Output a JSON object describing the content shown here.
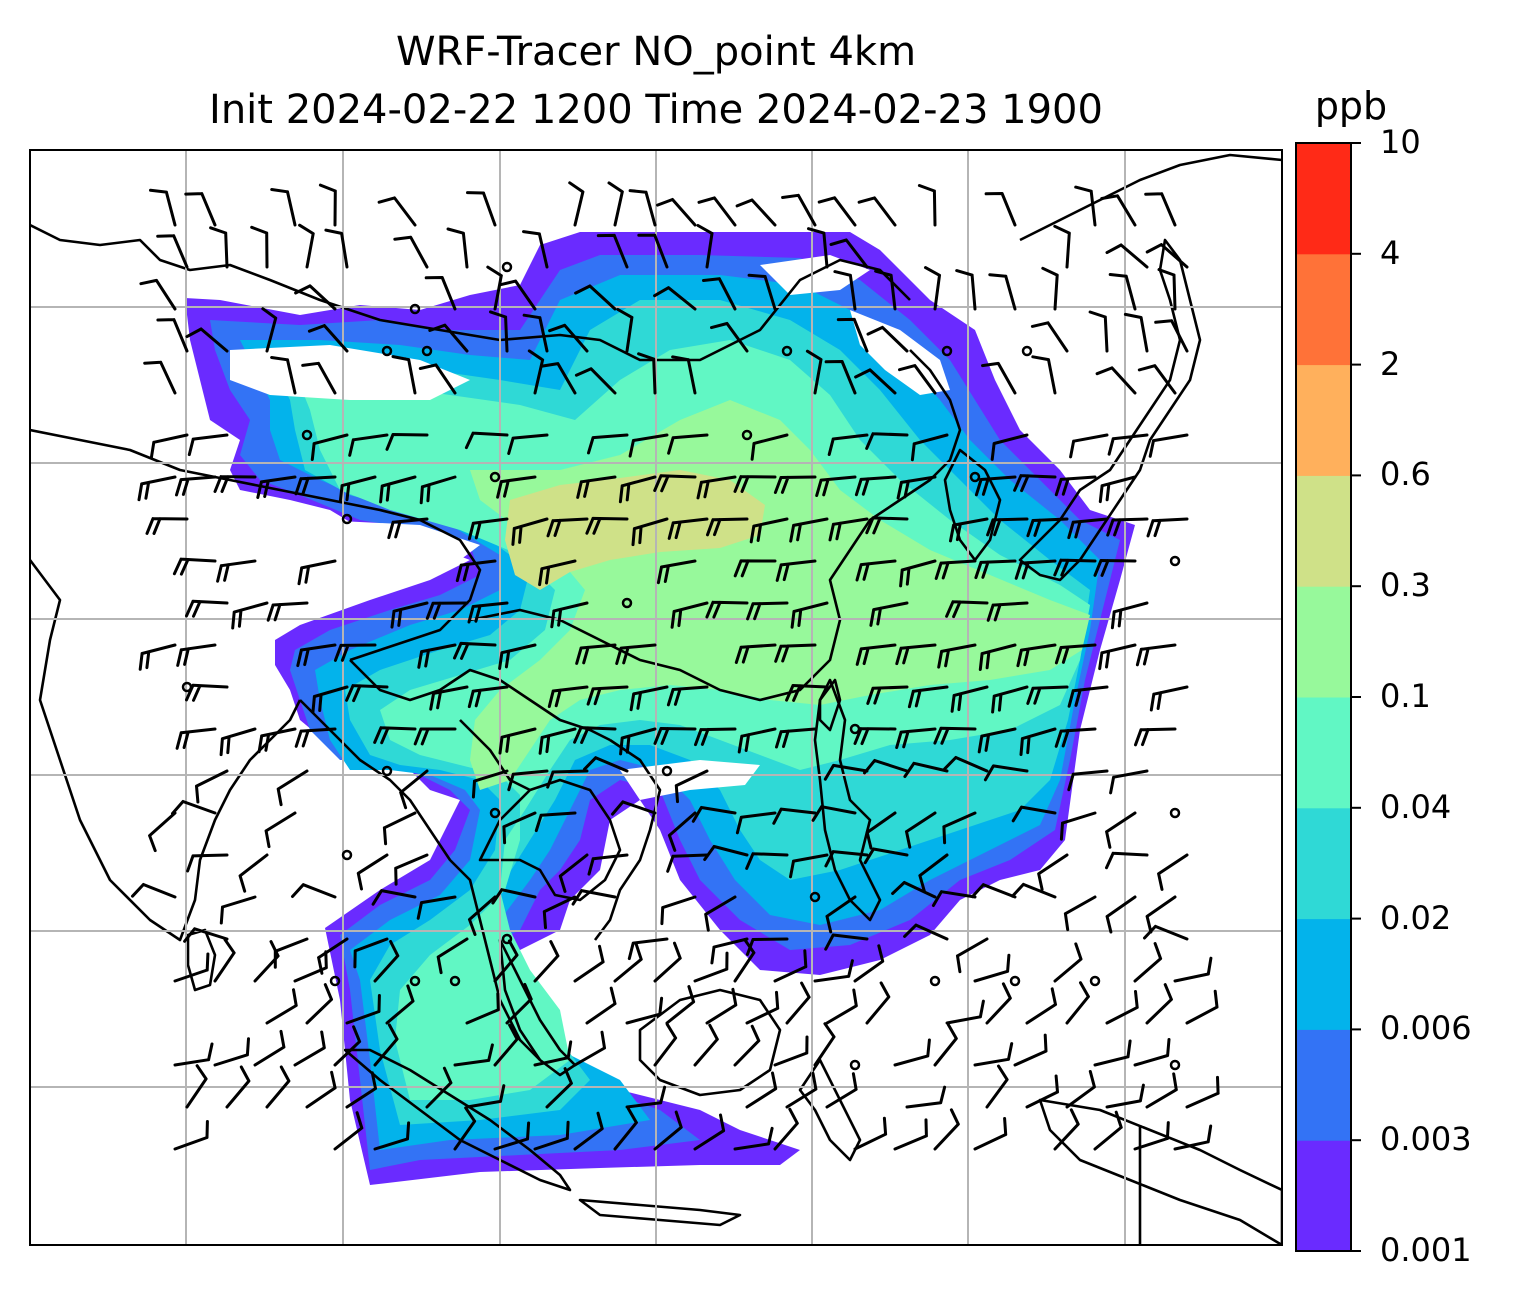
{
  "title": {
    "line1": "WRF-Tracer NO_point 4km",
    "line2": "Init 2024-02-22 1200 Time 2024-02-23 1900"
  },
  "colorbar": {
    "unit": "ppb",
    "ticks": [
      "0.001",
      "0.003",
      "0.006",
      "0.02",
      "0.04",
      "0.1",
      "0.3",
      "0.6",
      "2",
      "4",
      "10"
    ],
    "colors": [
      "#6a2bff",
      "#3373f5",
      "#03b3eb",
      "#2fd9d6",
      "#61f7c4",
      "#97f99b",
      "#cfe188",
      "#ffb05c",
      "#ff7238",
      "#ff2a17"
    ]
  },
  "map": {
    "gridlines": true,
    "field_colors": {
      "level1": "#6a2bff",
      "level2": "#3373f5",
      "level3": "#03b3eb",
      "level4": "#2fd9d6",
      "level5": "#61f7c4",
      "level6": "#97f99b",
      "level7": "#cfe188"
    },
    "wind_barbs": true
  }
}
